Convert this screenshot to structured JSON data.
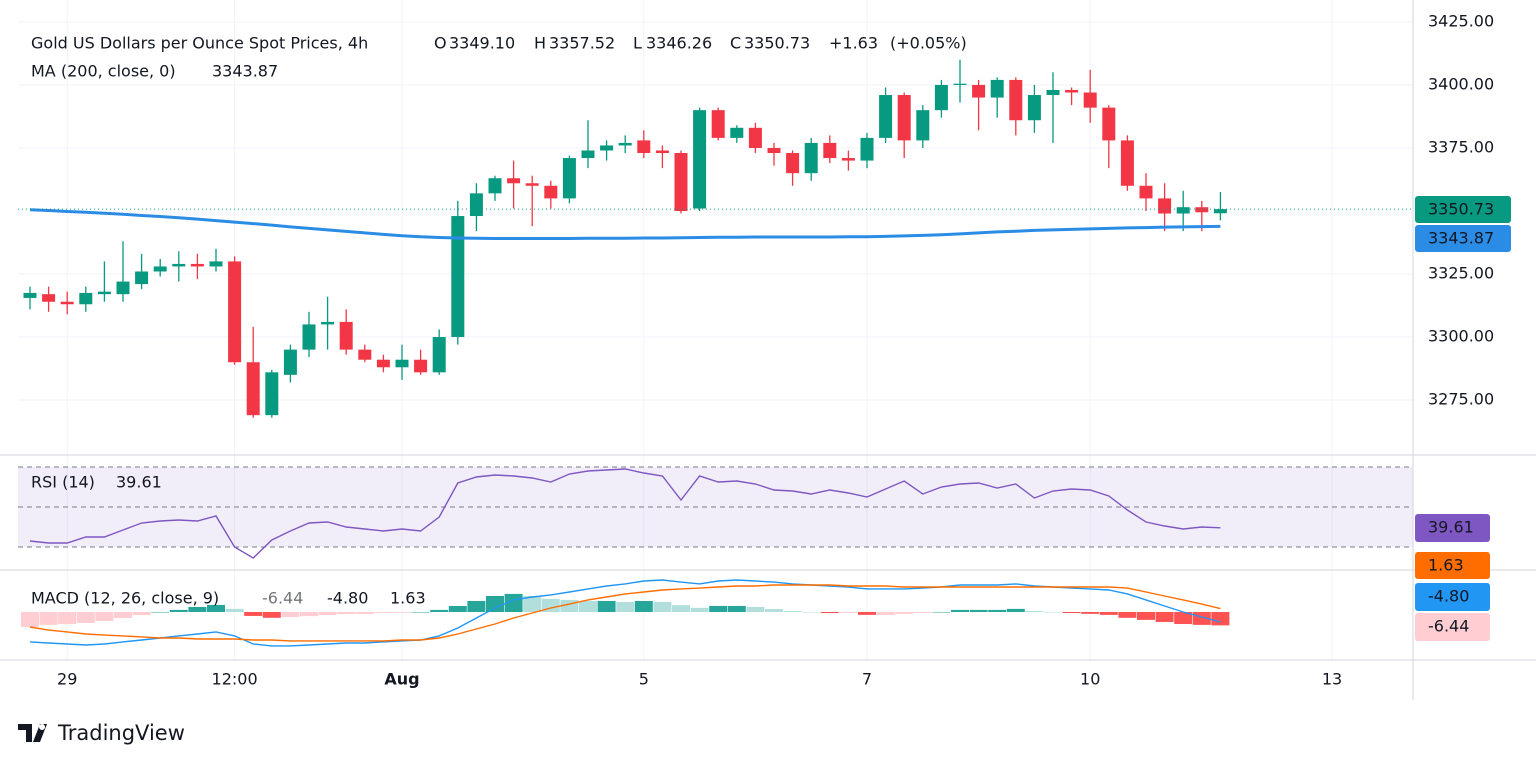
{
  "chart_data": [
    {
      "type": "candlestick",
      "title": "Gold US Dollars per Ounce Spot Prices, 4h",
      "quote": [
        {
          "name": "O",
          "value": 3349.1,
          "label": "3349.10"
        },
        {
          "name": "H",
          "value": 3357.52,
          "label": "3357.52"
        },
        {
          "name": "L",
          "value": 3346.26,
          "label": "3346.26"
        },
        {
          "name": "C",
          "value": 3350.73,
          "label": "3350.73"
        }
      ],
      "change": {
        "value": 1.63,
        "label": "+1.63"
      },
      "change_pct": {
        "value": 0.05,
        "label": "(+0.05%)"
      },
      "categories": [
        null,
        null,
        "29",
        null,
        null,
        null,
        null,
        null,
        null,
        null,
        null,
        "12:00",
        null,
        null,
        null,
        null,
        null,
        null,
        null,
        null,
        "Aug",
        null,
        null,
        null,
        null,
        null,
        null,
        null,
        null,
        null,
        null,
        null,
        null,
        "5",
        null,
        null,
        null,
        null,
        null,
        null,
        null,
        null,
        null,
        null,
        null,
        "7",
        null,
        null,
        null,
        null,
        null,
        null,
        null,
        null,
        null,
        null,
        null,
        "10",
        null,
        null,
        null,
        null,
        null,
        null,
        null,
        null,
        null,
        null,
        null,
        null,
        "13"
      ],
      "open": [
        3315.5,
        3317,
        3314,
        3313,
        3317,
        3317,
        3321,
        3326,
        3328,
        3329,
        3328,
        3330,
        3290,
        3269,
        3285,
        3295,
        3305,
        3306,
        3295,
        3291,
        3288,
        3291,
        3286,
        3300,
        3348,
        3357,
        3363,
        3361,
        3360,
        3355,
        3371,
        3374,
        3376,
        3378,
        3374,
        3373,
        3351,
        3390,
        3379,
        3383,
        3375,
        3373,
        3365,
        3377,
        3371,
        3370,
        3379,
        3396,
        3378,
        3390,
        3400,
        3400,
        3395,
        3402,
        3386,
        3396,
        3398,
        3397,
        3391,
        3378,
        3360,
        3355,
        3349,
        3351.5,
        3349.1,
        null,
        null,
        null,
        null,
        null,
        null
      ],
      "high": [
        3320,
        3320,
        3318,
        3320,
        3330,
        3338,
        3333,
        3331,
        3334,
        3333,
        3335,
        3332,
        3304,
        3287,
        3297,
        3310,
        3316,
        3311,
        3297,
        3293,
        3297,
        3295,
        3303,
        3354,
        3361,
        3364,
        3370,
        3364,
        3362,
        3372,
        3386,
        3378,
        3380,
        3382,
        3376,
        3374,
        3391,
        3391,
        3384,
        3385,
        3377,
        3374,
        3379,
        3380,
        3374,
        3381,
        3399,
        3397,
        3392,
        3402,
        3410,
        3402,
        3403,
        3403,
        3400,
        3405,
        3399,
        3406,
        3392,
        3380,
        3365,
        3361,
        3358,
        3354,
        3357.52,
        null,
        null,
        null,
        null,
        null,
        null
      ],
      "low": [
        3311,
        3310,
        3309,
        3310,
        3314,
        3314,
        3319,
        3324,
        3322,
        3323,
        3326,
        3289,
        3268,
        3268,
        3282,
        3292,
        3295,
        3293,
        3290,
        3286,
        3283,
        3285,
        3285,
        3297,
        3342,
        3354,
        3351,
        3344,
        3351,
        3353,
        3367,
        3370,
        3373,
        3371,
        3367,
        3349,
        3350,
        3378,
        3377,
        3373,
        3368,
        3360,
        3362,
        3369,
        3366,
        3367,
        3377,
        3371,
        3375,
        3387,
        3393,
        3382,
        3387,
        3380,
        3381,
        3377,
        3392,
        3385,
        3367,
        3358,
        3350,
        3342,
        3342,
        3342,
        3346.26,
        null,
        null,
        null,
        null,
        null,
        null
      ],
      "close": [
        3317.5,
        3314,
        3313,
        3317.5,
        3318,
        3322,
        3326,
        3328,
        3329,
        3328,
        3330,
        3290,
        3269,
        3286,
        3295,
        3305,
        3306,
        3295,
        3291,
        3288,
        3291,
        3286,
        3300,
        3348,
        3357,
        3363,
        3361,
        3360,
        3355,
        3371,
        3374,
        3376,
        3377,
        3373,
        3373,
        3350,
        3390,
        3379,
        3383,
        3375,
        3373,
        3365,
        3377,
        3371,
        3370,
        3379,
        3396,
        3378,
        3390,
        3400,
        3400.5,
        3395,
        3402,
        3386,
        3396,
        3398,
        3397,
        3391,
        3378,
        3360,
        3355,
        3349,
        3351.5,
        3349.5,
        3350.73,
        null,
        null,
        null,
        null,
        null,
        null
      ],
      "up_color": "#089981",
      "down_color": "#f23645",
      "overlays": [
        {
          "name": "MA (200, close, 0)",
          "color": "#2b8ce6",
          "values": [
            3350.5,
            3350.2,
            3349.8,
            3349.5,
            3349.1,
            3348.7,
            3348.2,
            3347.8,
            3347.3,
            3346.8,
            3346.2,
            3345.6,
            3345,
            3344.4,
            3343.7,
            3343.1,
            3342.5,
            3341.9,
            3341.3,
            3340.7,
            3340.2,
            3339.8,
            3339.5,
            3339.3,
            3339.2,
            3339.1,
            3339.1,
            3339.1,
            3339.1,
            3339.1,
            3339.2,
            3339.2,
            3339.2,
            3339.3,
            3339.3,
            3339.4,
            3339.5,
            3339.6,
            3339.6,
            3339.7,
            3339.7,
            3339.7,
            3339.7,
            3339.7,
            3339.8,
            3339.8,
            3339.9,
            3340.1,
            3340.3,
            3340.6,
            3340.9,
            3341.3,
            3341.7,
            3342,
            3342.3,
            3342.5,
            3342.7,
            3342.9,
            3343.1,
            3343.3,
            3343.4,
            3343.6,
            3343.7,
            3343.8,
            3343.87,
            null,
            null,
            null,
            null,
            null,
            null
          ]
        }
      ],
      "ylim": [
        3253.2,
        3433.7
      ],
      "yticks": [
        {
          "value": 3275,
          "label": "3275.00"
        },
        {
          "value": 3300,
          "label": "3300.00"
        },
        {
          "value": 3325,
          "label": "3325.00"
        },
        {
          "value": 3375,
          "label": "3375.00"
        },
        {
          "value": 3400,
          "label": "3400.00"
        },
        {
          "value": 3425,
          "label": "3425.00"
        }
      ],
      "grid": true
    },
    {
      "type": "rsi",
      "name": "RSI (14)",
      "color": "#7e57c2",
      "values": [
        33,
        32,
        32,
        35,
        35,
        38.5,
        42,
        43,
        43.5,
        43,
        45.5,
        30,
        24.5,
        33.5,
        38,
        42,
        42.5,
        40,
        39,
        38,
        39,
        38,
        45,
        62,
        65,
        66,
        65.5,
        64.5,
        62.5,
        66.5,
        68,
        68.5,
        69,
        67,
        65.5,
        53.5,
        65.5,
        62.5,
        63,
        61.5,
        58.5,
        58,
        56.5,
        58.5,
        57,
        55,
        59,
        63,
        56.5,
        60,
        61.5,
        62,
        59.5,
        61.5,
        54.5,
        58,
        59,
        58.5,
        55.5,
        48.5,
        42.5,
        40.5,
        39,
        40,
        39.61,
        null,
        null,
        null,
        null,
        null,
        null
      ],
      "levels": [
        70,
        50,
        30
      ],
      "ylim": [
        18.5,
        76
      ]
    },
    {
      "type": "macd",
      "name": "MACD (12, 26, close, 9)",
      "histogram": {
        "colors": [
          "#26a69a",
          "#b2dfdb",
          "#ffcdd2",
          "#ff5252"
        ],
        "values": [
          -7.2,
          -6.2,
          -5.8,
          -5.3,
          -4.3,
          -2.9,
          -1.5,
          0,
          1,
          2.4,
          3.4,
          1.5,
          -1.9,
          -2.8,
          -2.4,
          -2,
          -1.5,
          -1,
          -1,
          -0.5,
          -0.4,
          0,
          1,
          2.9,
          5.3,
          7.7,
          8.7,
          7.7,
          6.3,
          5.8,
          5.3,
          5.3,
          4.8,
          5.3,
          4.8,
          3.3,
          2,
          2.9,
          2.9,
          2.4,
          1.4,
          0.5,
          0,
          -0.5,
          -0.5,
          -1.4,
          -1.4,
          -0.9,
          -0.5,
          0,
          1,
          1,
          1,
          1.5,
          0.5,
          0,
          -0.5,
          -0.9,
          -1.4,
          -2.8,
          -3.8,
          -4.8,
          -5.8,
          -6.2,
          -6.44,
          null,
          null,
          null,
          null,
          null,
          null
        ]
      },
      "macd_line": {
        "color": "#2196f3",
        "last_label": "-4.80",
        "values": [
          -14.4,
          -14.9,
          -15.4,
          -15.9,
          -15.4,
          -14.4,
          -13.5,
          -12.5,
          -11.5,
          -10.6,
          -9.6,
          -11.5,
          -15.4,
          -16.3,
          -16.3,
          -15.9,
          -15.4,
          -14.9,
          -14.9,
          -14.4,
          -13.9,
          -13.5,
          -11.5,
          -7.7,
          -2.9,
          1.9,
          5.8,
          7.2,
          8.2,
          9.6,
          11.1,
          12.5,
          13.5,
          14.9,
          15.4,
          14.4,
          13.5,
          14.9,
          15.4,
          14.9,
          14.4,
          13.5,
          13,
          12.5,
          12,
          11.1,
          11.1,
          11.1,
          11.5,
          12,
          13,
          13,
          13,
          13.5,
          12.5,
          12,
          11.5,
          11.1,
          10.6,
          8.7,
          5.8,
          2.9,
          0,
          -2.4,
          -4.8,
          null,
          null,
          null,
          null,
          null,
          null
        ]
      },
      "signal": {
        "color": "#ff6d00",
        "values": [
          -7.2,
          -8.7,
          -9.6,
          -10.6,
          -11.1,
          -11.5,
          -12,
          -12.5,
          -12.5,
          -13,
          -13,
          -13,
          -13.5,
          -13.5,
          -13.9,
          -13.9,
          -13.9,
          -13.9,
          -13.9,
          -13.9,
          -13.5,
          -13.5,
          -12.5,
          -10.6,
          -8.2,
          -5.8,
          -2.9,
          -0.5,
          1.9,
          3.8,
          5.8,
          7.2,
          8.7,
          9.6,
          10.6,
          11.1,
          11.5,
          12,
          12.5,
          12.5,
          13,
          13,
          13,
          13,
          12.5,
          12.5,
          12.5,
          12,
          12,
          12,
          12,
          12,
          12,
          12,
          12,
          12,
          12,
          12,
          12,
          11.5,
          9.6,
          7.7,
          5.8,
          3.8,
          1.63,
          null,
          null,
          null,
          null,
          null,
          null
        ]
      },
      "ylim": [
        -23.1,
        20.2
      ]
    }
  ],
  "footer": {
    "brand": "TradingView"
  }
}
